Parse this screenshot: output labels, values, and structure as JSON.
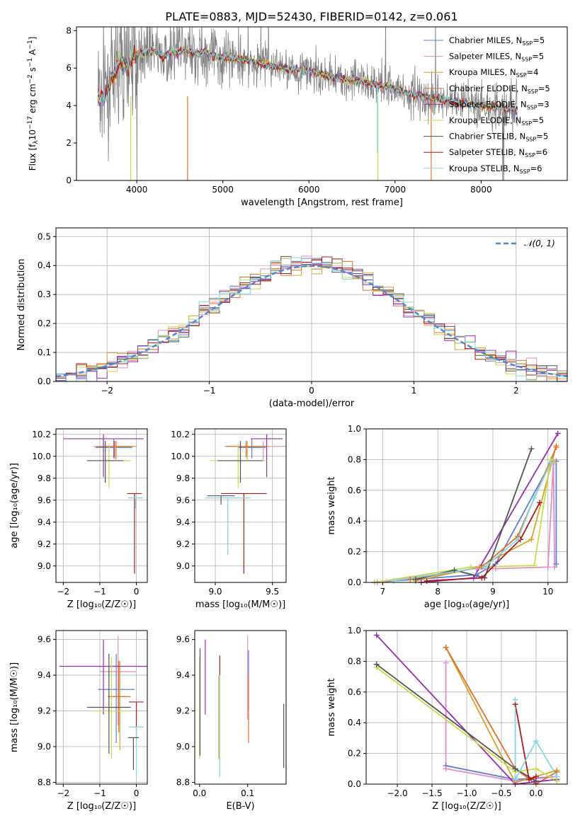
{
  "figure": {
    "title": "PLATE=0883, MJD=52430, FIBERID=0142, z=0.061"
  },
  "colors": {
    "Chabrier MILES": "#5b7fd6",
    "Salpeter MILES": "#e78ac3",
    "Kroupa MILES": "#d8a12a",
    "Chabrier ELODIE": "#e06f2a",
    "Salpeter ELODIE": "#9a2bb0",
    "Kroupa ELODIE": "#c8dc4a",
    "Chabrier STELIB": "#555555",
    "Salpeter STELIB": "#b01818",
    "Kroupa STELIB": "#80d8e0",
    "data": "#808080",
    "normal": "#4f86d8"
  },
  "chart_data": [
    {
      "id": "spectrum",
      "type": "line",
      "title": "PLATE=0883, MJD=52430, FIBERID=0142, z=0.061",
      "xlabel": "wavelength [Angstrom, rest frame]",
      "ylabel": "Flux [f_λ 10^-17 erg cm^-2 s^-1 A^-1]",
      "xlim": [
        3300,
        9000
      ],
      "ylim": [
        0,
        8.2
      ],
      "xticks": [
        4000,
        5000,
        6000,
        7000,
        8000
      ],
      "yticks": [
        0,
        2,
        4,
        6,
        8
      ],
      "legend_position": "top-right",
      "legend": [
        {
          "label": "Chabrier MILES, N",
          "sub": "SSP",
          "count": "=5"
        },
        {
          "label": "Salpeter MILES, N",
          "sub": "SSP",
          "count": "=5"
        },
        {
          "label": "Kroupa MILES, N",
          "sub": "SSP",
          "count": "=4"
        },
        {
          "label": "Chabrier ELODIE, N",
          "sub": "SSP",
          "count": "=5"
        },
        {
          "label": "Salpeter ELODIE, N",
          "sub": "SSP",
          "count": "=3"
        },
        {
          "label": "Kroupa ELODIE, N",
          "sub": "SSP",
          "count": "=5"
        },
        {
          "label": "Chabrier STELIB, N",
          "sub": "SSP",
          "count": "=5"
        },
        {
          "label": "Salpeter STELIB, N",
          "sub": "SSP",
          "count": "=6"
        },
        {
          "label": "Kroupa STELIB, N",
          "sub": "SSP",
          "count": "=6"
        }
      ],
      "model_continuum": {
        "x": [
          3550,
          3600,
          3650,
          3700,
          3750,
          3800,
          3850,
          3900,
          3950,
          4000,
          4100,
          4200,
          4300,
          4400,
          4500,
          4600,
          4700,
          4800,
          4900,
          5000,
          5200,
          5400,
          5600,
          5800,
          6000,
          6200,
          6400,
          6600,
          6800,
          7000,
          7200,
          7400,
          7600,
          7800,
          8000,
          8200,
          8400
        ],
        "y": [
          4.6,
          4.4,
          4.6,
          5.4,
          5.7,
          6.4,
          6.2,
          6.0,
          6.6,
          6.7,
          6.8,
          6.9,
          6.6,
          6.8,
          6.9,
          6.9,
          6.8,
          6.9,
          6.6,
          6.6,
          6.5,
          6.3,
          6.1,
          5.9,
          5.8,
          5.6,
          5.4,
          5.3,
          5.1,
          4.9,
          4.6,
          4.4,
          4.3,
          4.1,
          4.0,
          3.9,
          3.8
        ]
      },
      "data_noise": 1.1
    },
    {
      "id": "residuals",
      "type": "area",
      "xlabel": "(data-model)/error",
      "ylabel": "Normed distribution",
      "xlim": [
        -2.5,
        2.5
      ],
      "ylim": [
        0,
        0.53
      ],
      "xticks": [
        -2,
        -1,
        0,
        1,
        2
      ],
      "yticks": [
        0.0,
        0.1,
        0.2,
        0.3,
        0.4,
        0.5
      ],
      "grid": true,
      "legend": [
        {
          "label": "𝒩(0, 1)"
        }
      ],
      "legend_position": "top-right",
      "bin_width": 0.1
    },
    {
      "id": "age-z",
      "type": "scatter",
      "xlabel": "Z [log₁₀(Z/Z☉)]",
      "ylabel": "age  [log₁₀(age/yr)]",
      "xlim": [
        -2.2,
        0.3
      ],
      "ylim": [
        8.85,
        10.25
      ],
      "xticks": [
        -2,
        -1,
        0
      ],
      "yticks": [
        9.0,
        9.2,
        9.4,
        9.6,
        9.8,
        10.0,
        10.2
      ],
      "grid": true,
      "points": [
        {
          "model": "Chabrier MILES",
          "x": -0.62,
          "xerr": 0.5,
          "y": 10.08,
          "yerr": [
            0.1,
            0.08
          ]
        },
        {
          "model": "Salpeter MILES",
          "x": -0.58,
          "xerr": 0.6,
          "y": 10.09,
          "yerr": [
            0.12,
            0.05
          ]
        },
        {
          "model": "Kroupa MILES",
          "x": -0.55,
          "xerr": 0.5,
          "y": 10.09,
          "yerr": [
            0.12,
            0.05
          ]
        },
        {
          "model": "Chabrier ELODIE",
          "x": -0.6,
          "xerr": 0.5,
          "y": 10.09,
          "yerr": [
            0.1,
            0.05
          ]
        },
        {
          "model": "Salpeter ELODIE",
          "x": -0.9,
          "xerr": 1.1,
          "y": 10.16,
          "yerr": [
            0.35,
            0.04
          ]
        },
        {
          "model": "Kroupa ELODIE",
          "x": -0.75,
          "xerr": 0.6,
          "y": 9.96,
          "yerr": [
            0.25,
            0.15
          ]
        },
        {
          "model": "Chabrier STELIB",
          "x": -0.85,
          "xerr": 0.5,
          "y": 9.96,
          "yerr": [
            0.2,
            0.18
          ]
        },
        {
          "model": "Salpeter STELIB",
          "x": -0.05,
          "xerr": 0.2,
          "y": 9.66,
          "yerr": [
            0.73,
            0.0
          ]
        },
        {
          "model": "Kroupa STELIB",
          "x": -0.02,
          "xerr": 0.2,
          "y": 9.62,
          "yerr": [
            0.1,
            0.0
          ]
        }
      ]
    },
    {
      "id": "age-mass",
      "type": "scatter",
      "xlabel": "mass [log₁₀(M/M☉)]",
      "ylabel": "",
      "xlim": [
        8.82,
        9.62
      ],
      "ylim": [
        8.85,
        10.25
      ],
      "xticks": [
        9.0,
        9.5
      ],
      "yticks": [
        9.0,
        9.2,
        9.4,
        9.6,
        9.8,
        10.0,
        10.2
      ],
      "grid": true,
      "points": [
        {
          "model": "Chabrier MILES",
          "x": 9.32,
          "xerr": 0.12,
          "y": 10.08,
          "yerr": [
            0.1,
            0.08
          ]
        },
        {
          "model": "Salpeter MILES",
          "x": 9.42,
          "xerr": 0.2,
          "y": 10.09,
          "yerr": [
            0.12,
            0.05
          ]
        },
        {
          "model": "Kroupa MILES",
          "x": 9.28,
          "xerr": 0.2,
          "y": 10.09,
          "yerr": [
            0.12,
            0.05
          ]
        },
        {
          "model": "Chabrier ELODIE",
          "x": 9.27,
          "xerr": 0.18,
          "y": 10.09,
          "yerr": [
            0.1,
            0.05
          ]
        },
        {
          "model": "Salpeter ELODIE",
          "x": 9.45,
          "xerr": 0.14,
          "y": 10.16,
          "yerr": [
            0.35,
            0.04
          ]
        },
        {
          "model": "Kroupa ELODIE",
          "x": 9.2,
          "xerr": 0.25,
          "y": 9.96,
          "yerr": [
            0.25,
            0.15
          ]
        },
        {
          "model": "Chabrier STELIB",
          "x": 9.22,
          "xerr": 0.2,
          "y": 9.96,
          "yerr": [
            0.2,
            0.18
          ]
        },
        {
          "model": "Salpeter STELIB",
          "x": 9.25,
          "xerr": 0.2,
          "y": 9.66,
          "yerr": [
            0.73,
            0.0
          ]
        },
        {
          "model": "Kroupa STELIB",
          "x": 9.11,
          "xerr": 0.2,
          "y": 9.62,
          "yerr": [
            0.52,
            0.0
          ]
        },
        {
          "model": "Chabrier STELIB",
          "x": 9.05,
          "xerr": 0.12,
          "y": 9.64,
          "yerr": [
            0.08,
            0.0
          ]
        }
      ]
    },
    {
      "id": "weight-age",
      "type": "line",
      "xlabel": "age  [log₁₀(age/yr)]",
      "ylabel": "mass weight",
      "xlim": [
        6.7,
        10.35
      ],
      "ylim": [
        0,
        1
      ],
      "xticks": [
        7,
        8,
        9,
        10
      ],
      "yticks": [
        0.0,
        0.2,
        0.4,
        0.6,
        0.8,
        1.0
      ],
      "grid": true,
      "series": [
        {
          "model": "Chabrier MILES",
          "x": [
            6.85,
            8.7,
            9.05,
            10.05,
            10.15,
            10.15
          ],
          "y": [
            0.0,
            0.05,
            0.12,
            0.78,
            0.79,
            0.12
          ]
        },
        {
          "model": "Salpeter MILES",
          "x": [
            6.9,
            8.7,
            9.05,
            10.0,
            10.1,
            10.12
          ],
          "y": [
            0.0,
            0.09,
            0.09,
            0.1,
            0.79,
            0.1
          ]
        },
        {
          "model": "Kroupa MILES",
          "x": [
            7.6,
            8.75,
            9.7,
            10.15
          ],
          "y": [
            0.01,
            0.1,
            0.28,
            0.89
          ]
        },
        {
          "model": "Chabrier ELODIE",
          "x": [
            7.5,
            8.8,
            9.45,
            10.15
          ],
          "y": [
            0.02,
            0.1,
            0.3,
            0.88
          ]
        },
        {
          "model": "Salpeter ELODIE",
          "x": [
            7.7,
            8.65,
            10.18
          ],
          "y": [
            0.0,
            0.03,
            0.97
          ]
        },
        {
          "model": "Kroupa ELODIE",
          "x": [
            6.85,
            8.6,
            9.75,
            10.05,
            10.12
          ],
          "y": [
            0.0,
            0.1,
            0.11,
            0.8,
            0.78
          ]
        },
        {
          "model": "Chabrier STELIB",
          "x": [
            7.6,
            8.3,
            8.85,
            9.7
          ],
          "y": [
            0.02,
            0.08,
            0.03,
            0.87
          ]
        },
        {
          "model": "Salpeter STELIB",
          "x": [
            7.8,
            8.8,
            9.5,
            9.85
          ],
          "y": [
            0.01,
            0.03,
            0.28,
            0.52
          ]
        },
        {
          "model": "Kroupa STELIB",
          "x": [
            7.2,
            8.85,
            9.45,
            9.75,
            10.05
          ],
          "y": [
            0.01,
            0.1,
            0.28,
            0.55,
            0.78
          ]
        }
      ]
    },
    {
      "id": "mass-z",
      "type": "scatter",
      "xlabel": "Z [log₁₀(Z/Z☉)]",
      "ylabel": "mass [log₁₀(M/M☉)]",
      "xlim": [
        -2.2,
        0.3
      ],
      "ylim": [
        8.79,
        9.65
      ],
      "xticks": [
        -2,
        -1,
        0
      ],
      "yticks": [
        8.8,
        9.0,
        9.2,
        9.4,
        9.6
      ],
      "grid": true,
      "points": [
        {
          "model": "Chabrier MILES",
          "x": -0.55,
          "xerr": 0.5,
          "y": 9.32,
          "yerr": [
            0.3,
            0.2
          ]
        },
        {
          "model": "Salpeter MILES",
          "x": -0.5,
          "xerr": 0.5,
          "y": 9.42,
          "yerr": [
            0.3,
            0.2
          ]
        },
        {
          "model": "Kroupa MILES",
          "x": -0.45,
          "xerr": 0.3,
          "y": 9.28,
          "yerr": [
            0.3,
            0.2
          ]
        },
        {
          "model": "Chabrier ELODIE",
          "x": -0.48,
          "xerr": 0.3,
          "y": 9.28,
          "yerr": [
            0.2,
            0.2
          ]
        },
        {
          "model": "Salpeter ELODIE",
          "x": -0.9,
          "xerr": 1.2,
          "y": 9.45,
          "yerr": [
            0.27,
            0.15
          ]
        },
        {
          "model": "Kroupa ELODIE",
          "x": -0.68,
          "xerr": 0.5,
          "y": 9.2,
          "yerr": [
            0.27,
            0.3
          ]
        },
        {
          "model": "Chabrier STELIB",
          "x": -0.75,
          "xerr": 0.6,
          "y": 9.22,
          "yerr": [
            0.26,
            0.3
          ]
        },
        {
          "model": "Salpeter STELIB",
          "x": 0.0,
          "xerr": 0.2,
          "y": 9.25,
          "yerr": [
            0.2,
            0.0
          ]
        },
        {
          "model": "Kroupa STELIB",
          "x": 0.0,
          "xerr": 0.2,
          "y": 9.11,
          "yerr": [
            0.28,
            0.0
          ]
        },
        {
          "model": "Chabrier STELIB",
          "x": -0.08,
          "xerr": 0.15,
          "y": 9.05,
          "yerr": [
            0.18,
            0.0
          ]
        }
      ]
    },
    {
      "id": "mass-ebv",
      "type": "scatter",
      "xlabel": "E(B-V)",
      "ylabel": "",
      "xlim": [
        -0.01,
        0.18
      ],
      "ylim": [
        8.79,
        9.65
      ],
      "xticks": [
        0.0,
        0.1
      ],
      "yticks": [
        8.8,
        9.0,
        9.2,
        9.4,
        9.6
      ],
      "grid": false,
      "bars": [
        {
          "model": "Kroupa ELODIE",
          "x": 0.0,
          "ymin": 8.93,
          "ymax": 9.5
        },
        {
          "model": "Chabrier STELIB",
          "x": 0.001,
          "ymin": 8.95,
          "ymax": 9.55
        },
        {
          "model": "Salpeter ELODIE",
          "x": 0.012,
          "ymin": 9.18,
          "ymax": 9.6
        },
        {
          "model": "Kroupa MILES",
          "x": 0.04,
          "ymin": 8.93,
          "ymax": 9.4
        },
        {
          "model": "Kroupa STELIB",
          "x": 0.042,
          "ymin": 8.83,
          "ymax": 9.4
        },
        {
          "model": "Salpeter STELIB",
          "x": 0.042,
          "ymin": 9.4,
          "ymax": 9.51
        },
        {
          "model": "Salpeter MILES",
          "x": 0.1,
          "ymin": 9.15,
          "ymax": 9.62
        },
        {
          "model": "Chabrier MILES",
          "x": 0.102,
          "ymin": 9.2,
          "ymax": 9.54
        },
        {
          "model": "Chabrier ELODIE",
          "x": 0.102,
          "ymin": 9.02,
          "ymax": 9.4
        },
        {
          "model": "Chabrier STELIB",
          "x": 0.175,
          "ymin": 8.88,
          "ymax": 9.24
        }
      ]
    },
    {
      "id": "weight-z",
      "type": "line",
      "xlabel": "Z [log₁₀(Z/Z☉)]",
      "ylabel": "mass weight",
      "xlim": [
        -2.45,
        0.45
      ],
      "ylim": [
        0,
        1
      ],
      "xticks": [
        -2.0,
        -1.5,
        -1.0,
        -0.5,
        0.0
      ],
      "yticks": [
        0.0,
        0.2,
        0.4,
        0.6,
        0.8,
        1.0
      ],
      "grid": true,
      "series": [
        {
          "model": "Chabrier MILES",
          "x": [
            -1.3,
            -0.3,
            0.3
          ],
          "y": [
            0.12,
            0.03,
            0.05
          ]
        },
        {
          "model": "Salpeter MILES",
          "x": [
            -1.3,
            -1.3,
            -0.3,
            0.3
          ],
          "y": [
            0.79,
            0.1,
            0.02,
            0.05
          ]
        },
        {
          "model": "Kroupa MILES",
          "x": [
            -1.3,
            -0.3,
            0.3
          ],
          "y": [
            0.89,
            0.01,
            0.09
          ]
        },
        {
          "model": "Chabrier ELODIE",
          "x": [
            -1.3,
            -0.3,
            0.0,
            0.3
          ],
          "y": [
            0.89,
            0.1,
            0.0,
            0.08
          ]
        },
        {
          "model": "Salpeter ELODIE",
          "x": [
            -2.3,
            -0.3,
            0.3
          ],
          "y": [
            0.97,
            0.0,
            0.03
          ]
        },
        {
          "model": "Kroupa ELODIE",
          "x": [
            -2.3,
            -0.3,
            0.0,
            0.3
          ],
          "y": [
            0.76,
            0.08,
            0.1,
            0.02
          ]
        },
        {
          "model": "Chabrier STELIB",
          "x": [
            -2.3,
            -0.3,
            0.0
          ],
          "y": [
            0.78,
            0.1,
            0.02
          ]
        },
        {
          "model": "Salpeter STELIB",
          "x": [
            -0.3,
            -0.1,
            0.0
          ],
          "y": [
            0.52,
            0.03,
            0.05
          ]
        },
        {
          "model": "Kroupa STELIB",
          "x": [
            -0.3,
            -0.3,
            0.0,
            0.3
          ],
          "y": [
            0.55,
            0.03,
            0.28,
            0.05
          ]
        }
      ]
    }
  ]
}
